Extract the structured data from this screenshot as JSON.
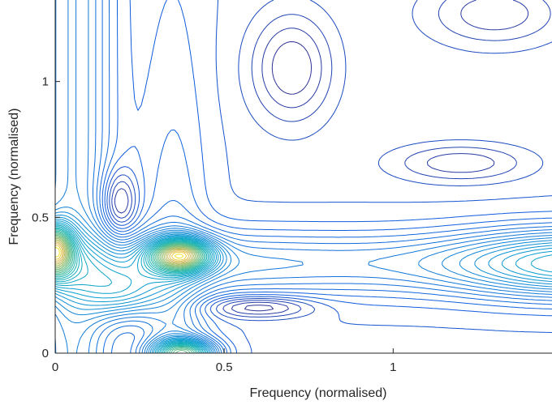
{
  "chart_data": {
    "type": "contour",
    "title": "",
    "xlabel": "Frequency (normalised)",
    "ylabel": "Frequency (normalised)",
    "xlim": [
      0,
      1.47
    ],
    "ylim": [
      0,
      1.3
    ],
    "xticks": [
      0,
      0.5,
      1
    ],
    "xtick_labels": [
      "0",
      "0.5",
      "1"
    ],
    "yticks": [
      0,
      0.5,
      1
    ],
    "ytick_labels": [
      "0",
      "0.5",
      "1"
    ],
    "grid": false,
    "colormap": "parula",
    "colors": {
      "low": "#3b2ab8",
      "mid": "#1fb8b0",
      "high": "#f5d81a"
    },
    "peaks": [
      {
        "x": 0.37,
        "y": 0.36,
        "level": 1.0
      },
      {
        "x": 0.0,
        "y": 0.38,
        "level": 0.9
      },
      {
        "x": 0.38,
        "y": 0.0,
        "level": 0.85
      },
      {
        "x": 0.2,
        "y": 0.22,
        "level": 0.55
      },
      {
        "x": 1.47,
        "y": 0.33,
        "level": 0.45
      }
    ],
    "valleys": [
      {
        "x": 0.19,
        "y": 0.55
      },
      {
        "x": 0.6,
        "y": 0.17
      },
      {
        "x": 0.7,
        "y": 1.05
      },
      {
        "x": 1.2,
        "y": 0.7
      },
      {
        "x": 1.3,
        "y": 1.25
      }
    ]
  }
}
